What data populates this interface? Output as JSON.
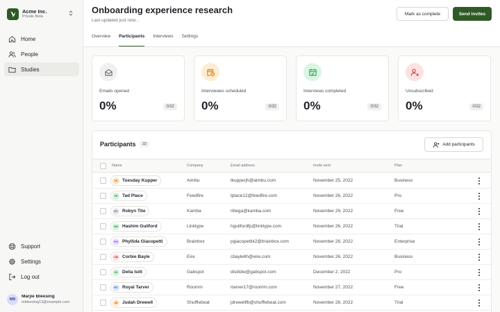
{
  "org": {
    "name": "Acme Inc.",
    "subtitle": "Private Beta"
  },
  "nav_top": [
    {
      "id": "home",
      "label": "Home",
      "icon": "home-icon",
      "active": false
    },
    {
      "id": "people",
      "label": "People",
      "icon": "people-icon",
      "active": false
    },
    {
      "id": "studies",
      "label": "Studies",
      "icon": "folder-icon",
      "active": true
    }
  ],
  "nav_bottom": [
    {
      "id": "support",
      "label": "Support",
      "icon": "lifebuoy-icon"
    },
    {
      "id": "settings",
      "label": "Settings",
      "icon": "gear-icon"
    },
    {
      "id": "logout",
      "label": "Log out",
      "icon": "logout-icon"
    }
  ],
  "user": {
    "initials": "MB",
    "name": "Marjie Bleesing",
    "email": "mbleesing13@example.com"
  },
  "header": {
    "title": "Onboarding experience research",
    "subtitle": "Last updated just now...",
    "mark_complete_label": "Mark as complete",
    "send_invites_label": "Send invites"
  },
  "tabs": [
    {
      "label": "Overview",
      "active": false
    },
    {
      "label": "Participants",
      "active": true
    },
    {
      "label": "Interviews",
      "active": false
    },
    {
      "label": "Settings",
      "active": false
    }
  ],
  "stats": [
    {
      "label": "Emails opened",
      "value": "0%",
      "badge": "0/32",
      "icon": "mail-open-icon",
      "color": "#5b6470",
      "bg": "#f0f0ef"
    },
    {
      "label": "Interviewes scheduled",
      "value": "0%",
      "badge": "0/32",
      "icon": "calendar-clock-icon",
      "color": "#d97706",
      "bg": "#fdedd3"
    },
    {
      "label": "Interviews completed",
      "value": "0%",
      "badge": "0/32",
      "icon": "calendar-check-icon",
      "color": "#16a34a",
      "bg": "#dcf5e3"
    },
    {
      "label": "Unsubscribed",
      "value": "0%",
      "badge": "0/32",
      "icon": "user-x-icon",
      "color": "#dc2626",
      "bg": "#fde2e2"
    }
  ],
  "participants": {
    "title": "Participants",
    "count": "32",
    "add_label": "Add participants",
    "columns": [
      "Name",
      "Company",
      "Email address",
      "Invite sent",
      "Plan"
    ],
    "rows": [
      {
        "initials": "TK",
        "name": "Tuesday Kupper",
        "company": "Aimbu",
        "email": "tkupperjh@aimbu.com",
        "invite": "November 25, 2022",
        "plan": "Business",
        "color": "#b45309",
        "bg": "#fde7c2"
      },
      {
        "initials": "TP",
        "name": "Tad Place",
        "company": "Feedfire",
        "email": "tplace12@feedfire.com",
        "invite": "November 26, 2022",
        "plan": "Pro",
        "color": "#15803d",
        "bg": "#d3f2dc"
      },
      {
        "initials": "RT",
        "name": "Robyn Tite",
        "company": "Kamba",
        "email": "rtitega@kamba.com",
        "invite": "November 29, 2022",
        "plan": "Free",
        "color": "#4b5563",
        "bg": "#e6e8ec"
      },
      {
        "initials": "HG",
        "name": "Hashim Guilford",
        "company": "Linktype",
        "email": "hguilfordfp@linktype.com",
        "invite": "November 26, 2022",
        "plan": "Trial",
        "color": "#15803d",
        "bg": "#d3f2dc"
      },
      {
        "initials": "PG",
        "name": "Phyllida Giacopetti",
        "company": "Brainbox",
        "email": "pgiacopettik2@brainbox.com",
        "invite": "November 28, 2022",
        "plan": "Enterprise",
        "color": "#6d28d9",
        "bg": "#e9e0fb"
      },
      {
        "initials": "CB",
        "name": "Corbie Bayle",
        "company": "Eire",
        "email": "cbayle8h@eire.com",
        "invite": "November 26, 2022",
        "plan": "Business",
        "color": "#b91c1c",
        "bg": "#fbe0e0"
      },
      {
        "initials": "DI",
        "name": "Delia Isitt",
        "company": "Gabspot",
        "email": "disittdw@gabspot.com",
        "invite": "December 2, 2022",
        "plan": "Pro",
        "color": "#15803d",
        "bg": "#d3f2dc"
      },
      {
        "initials": "RT",
        "name": "Royal Tarver",
        "company": "Roomm",
        "email": "rtarver17@roomm.com",
        "invite": "November 27, 2022",
        "plan": "Free",
        "color": "#1d4ed8",
        "bg": "#dce6fb"
      },
      {
        "initials": "JD",
        "name": "Judah Drewell",
        "company": "Shufflebeat",
        "email": "jdrewellfb@shufflebeat.com",
        "invite": "November 28, 2022",
        "plan": "Trial",
        "color": "#b45309",
        "bg": "#fde7c2"
      }
    ]
  }
}
